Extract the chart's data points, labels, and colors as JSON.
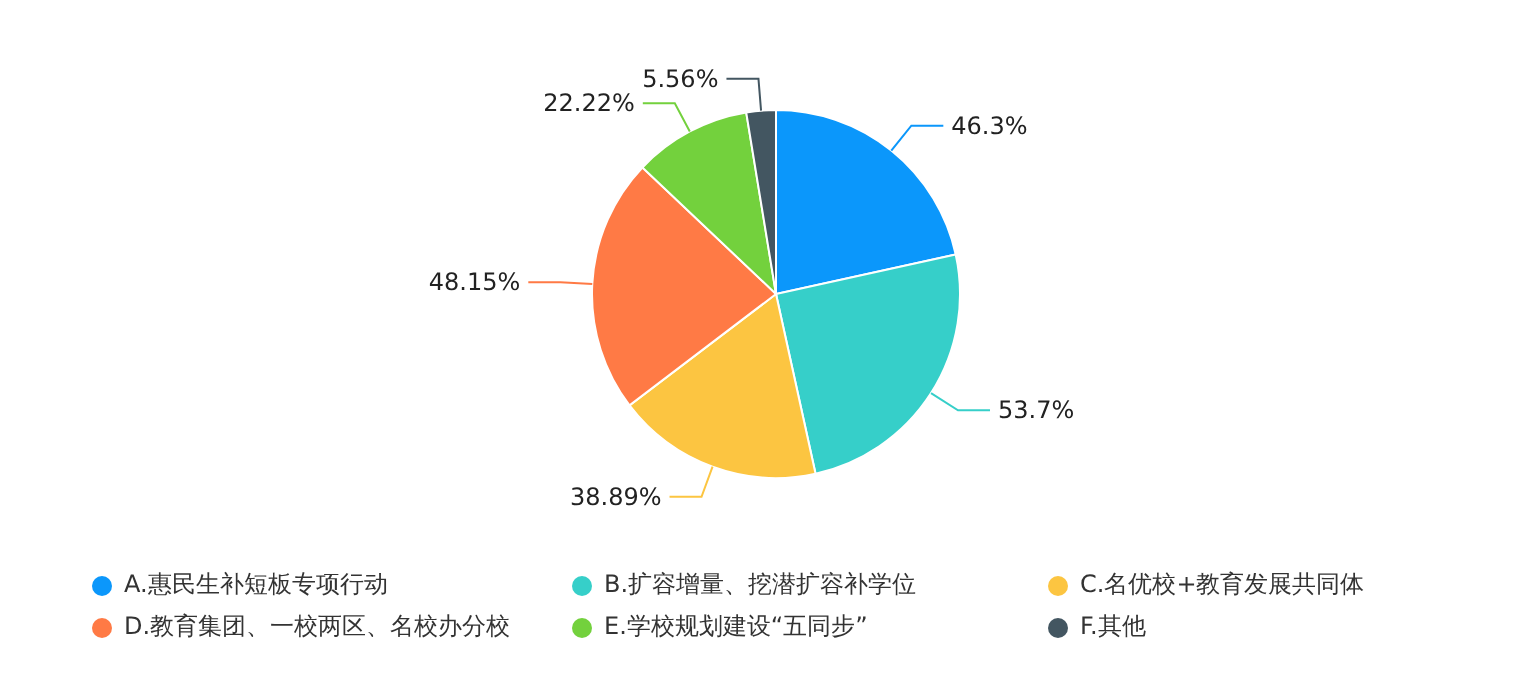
{
  "chart_data": {
    "type": "pie",
    "categories": [
      "A.惠民生补短板专项行动",
      "B.扩容增量、挖潜扩容补学位",
      "C.名优校+教育发展共同体",
      "D.教育集团、一校两区、名校办分校",
      "E.学校规划建设“五同步”",
      "F.其他"
    ],
    "values": [
      46.3,
      53.7,
      38.89,
      48.15,
      22.22,
      5.56
    ],
    "value_labels": [
      "46.3%",
      "53.7%",
      "38.89%",
      "48.15%",
      "22.22%",
      "5.56%"
    ],
    "colors": [
      "#0b97fb",
      "#36cfc9",
      "#fcc541",
      "#ff7a45",
      "#73d13d",
      "#435661"
    ],
    "legend": "bottom"
  }
}
